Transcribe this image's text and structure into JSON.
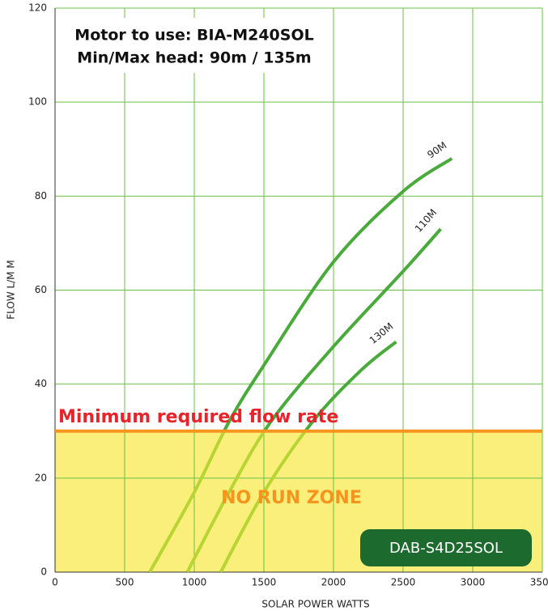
{
  "chart_data": {
    "type": "line",
    "annotations": [
      "Motor to use: BIA-M240SOL",
      "Min/Max head: 90m / 135m"
    ],
    "xlabel": "SOLAR POWER WATTS",
    "ylabel": "FLOW L/M M",
    "xlim": [
      0,
      3500
    ],
    "xticks": [
      0,
      500,
      1000,
      1500,
      2000,
      2500,
      3000,
      3500
    ],
    "ylim": [
      0,
      120
    ],
    "yticks": [
      0,
      20,
      40,
      60,
      80,
      100,
      120
    ],
    "grid": true,
    "grid_color": "#6cbf45",
    "threshold": {
      "value": 30,
      "label": "Minimum required flow rate",
      "color": "#f7941d",
      "label_color": "#e8242b"
    },
    "zone": {
      "label": "NO RUN ZONE",
      "color": "#f9ef7a",
      "label_color": "#f7941d",
      "curve_color": "#b8d432"
    },
    "model": {
      "label": "DAB-S4D25SOL",
      "color": "#1d6a2e"
    },
    "series": [
      {
        "name": "90M",
        "color": "#4aaa3c",
        "x": [
          680,
          1000,
          1250,
          1500,
          2000,
          2500,
          2850
        ],
        "values": [
          0,
          17,
          32,
          44,
          66,
          81,
          88
        ]
      },
      {
        "name": "110M",
        "color": "#4aaa3c",
        "x": [
          950,
          1250,
          1550,
          2000,
          2500,
          2770
        ],
        "values": [
          0,
          17,
          32,
          48,
          64,
          73
        ]
      },
      {
        "name": "130M",
        "color": "#4aaa3c",
        "x": [
          1190,
          1500,
          1850,
          2200,
          2450
        ],
        "values": [
          0,
          17,
          32,
          43,
          49
        ]
      }
    ]
  }
}
